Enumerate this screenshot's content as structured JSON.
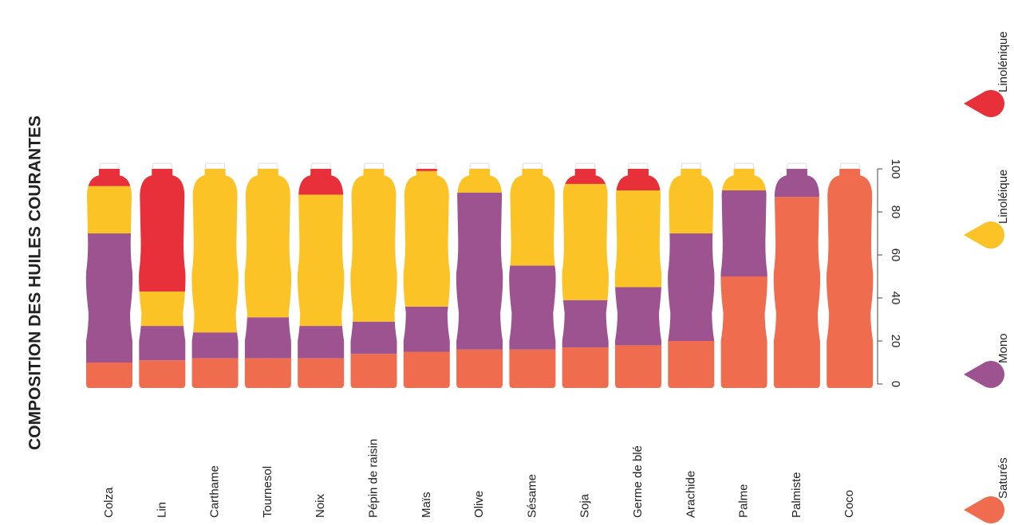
{
  "chart_data": {
    "type": "bar",
    "stacked": true,
    "title": "COMPOSITION DES HUILES COURANTES",
    "categories": [
      "Colza",
      "Lin",
      "Carthame",
      "Tournesol",
      "Noix",
      "Pépin de raisin",
      "Maïs",
      "Olive",
      "Sésame",
      "Soja",
      "Germe de blé",
      "Arachide",
      "Palme",
      "Palmiste",
      "Coco"
    ],
    "series": [
      {
        "name": "Saturés",
        "color": "#ef6c4f",
        "values": [
          10,
          11,
          12,
          12,
          12,
          14,
          15,
          16,
          16,
          17,
          18,
          20,
          50,
          87,
          100
        ]
      },
      {
        "name": "Mono",
        "color": "#9d5390",
        "values": [
          60,
          16,
          12,
          19,
          15,
          15,
          21,
          73,
          39,
          22,
          27,
          50,
          40,
          13,
          0
        ]
      },
      {
        "name": "Linoléique",
        "color": "#fbc326",
        "values": [
          22,
          16,
          76,
          69,
          61,
          71,
          63,
          11,
          45,
          54,
          45,
          30,
          10,
          0,
          0
        ]
      },
      {
        "name": "Linolénique",
        "color": "#e8303a",
        "values": [
          8,
          57,
          0,
          0,
          12,
          0,
          1,
          0,
          0,
          7,
          10,
          0,
          0,
          0,
          0
        ]
      }
    ],
    "ylim": [
      0,
      100
    ],
    "yticks": [
      0,
      20,
      40,
      60,
      80,
      100
    ]
  }
}
